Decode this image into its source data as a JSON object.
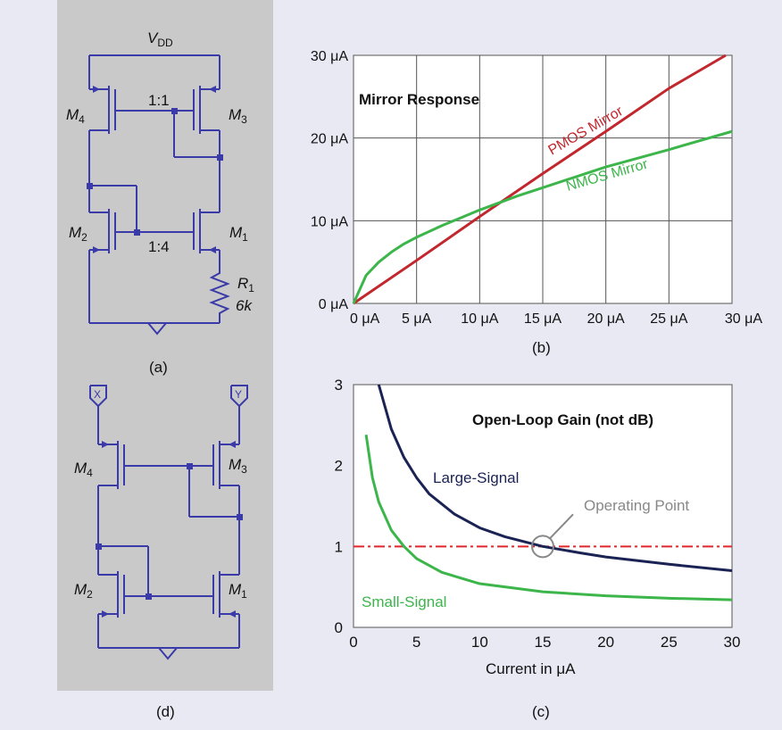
{
  "circuit_a": {
    "supply": "V",
    "supply_sub": "DD",
    "m4": "M",
    "m4_sub": "4",
    "m3": "M",
    "m3_sub": "3",
    "m2": "M",
    "m2_sub": "2",
    "m1": "M",
    "m1_sub": "1",
    "ratio_top": "1:1",
    "ratio_bottom": "1:4",
    "r1": "R",
    "r1_sub": "1",
    "r1_value": "6k",
    "caption": "(a)"
  },
  "circuit_d": {
    "port_x": "X",
    "port_y": "Y",
    "m4": "M",
    "m4_sub": "4",
    "m3": "M",
    "m3_sub": "3",
    "m2": "M",
    "m2_sub": "2",
    "m1": "M",
    "m1_sub": "1",
    "caption": "(d)"
  },
  "colors": {
    "panel_bg": "#e9e9f4",
    "schematic_bg": "#c9c9c9",
    "wire": "#3a3aa8",
    "pmos": "#c1272d",
    "nmos": "#3cb54a",
    "large_signal": "#1b2354",
    "small_signal": "#3cb54a",
    "unity": "#e0262b",
    "op_point": "#888888"
  },
  "chart_data": [
    {
      "type": "line",
      "title": "Mirror Response",
      "caption": "(b)",
      "xlim": [
        0,
        30
      ],
      "ylim": [
        0,
        30
      ],
      "x_ticks": [
        "0 μA",
        "5 μA",
        "10 μA",
        "15 μA",
        "20 μA",
        "25 μA",
        "30 μA"
      ],
      "y_ticks": [
        "0 μA",
        "10 μA",
        "20 μA",
        "30 μA"
      ],
      "grid": true,
      "series": [
        {
          "name": "PMOS Mirror",
          "x": [
            0,
            5,
            10,
            15,
            20,
            25,
            29.5
          ],
          "y": [
            0,
            5.2,
            10.5,
            15.7,
            20.8,
            26,
            30
          ]
        },
        {
          "name": "NMOS Mirror",
          "x": [
            0,
            1,
            2,
            3,
            4,
            5,
            7,
            10,
            13,
            15,
            20,
            25,
            30
          ],
          "y": [
            0,
            3.4,
            5,
            6.2,
            7.2,
            8,
            9.4,
            11.3,
            13,
            14,
            16.5,
            18.6,
            20.8
          ]
        }
      ]
    },
    {
      "type": "line",
      "title": "Open-Loop Gain (not dB)",
      "caption": "(c)",
      "xlabel": "Current in μA",
      "xlim": [
        0,
        30
      ],
      "ylim": [
        0,
        3
      ],
      "x_ticks": [
        "0",
        "5",
        "10",
        "15",
        "20",
        "25",
        "30"
      ],
      "y_ticks": [
        "0",
        "1",
        "2",
        "3"
      ],
      "grid": false,
      "series": [
        {
          "name": "Large-Signal",
          "x": [
            2,
            3,
            4,
            5,
            6,
            8,
            10,
            12,
            15,
            18,
            20,
            25,
            30
          ],
          "y": [
            3,
            2.45,
            2.1,
            1.85,
            1.65,
            1.4,
            1.23,
            1.12,
            1.0,
            0.92,
            0.87,
            0.78,
            0.7
          ]
        },
        {
          "name": "Small-Signal",
          "x": [
            1,
            1.5,
            2,
            3,
            4,
            5,
            7,
            10,
            15,
            20,
            25,
            30
          ],
          "y": [
            2.38,
            1.85,
            1.55,
            1.2,
            1.0,
            0.85,
            0.68,
            0.54,
            0.44,
            0.39,
            0.36,
            0.34
          ]
        }
      ],
      "reference_line": {
        "y": 1,
        "style": "dash-dot"
      },
      "annotation": {
        "text": "Operating Point",
        "x": 15,
        "y": 1
      }
    }
  ]
}
